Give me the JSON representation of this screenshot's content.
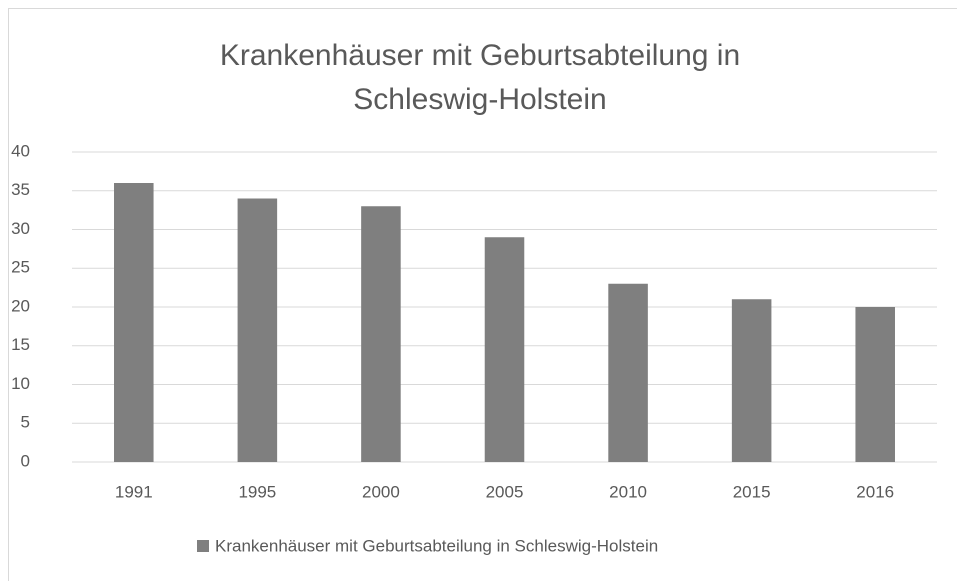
{
  "chart_data": {
    "type": "bar",
    "title": "Krankenhäuser mit Geburtsabteilung in Schleswig-Holstein",
    "categories": [
      "1991",
      "1995",
      "2000",
      "2005",
      "2010",
      "2015",
      "2016"
    ],
    "series": [
      {
        "name": "Krankenhäuser mit Geburtsabteilung in Schleswig-Holstein",
        "color": "#7f7f7f",
        "values": [
          36,
          34,
          33,
          29,
          23,
          21,
          20
        ]
      }
    ],
    "ylim": [
      0,
      40
    ],
    "yticks": [
      0,
      5,
      10,
      15,
      20,
      25,
      30,
      35,
      40
    ],
    "grid": true,
    "legend": "bottom"
  }
}
